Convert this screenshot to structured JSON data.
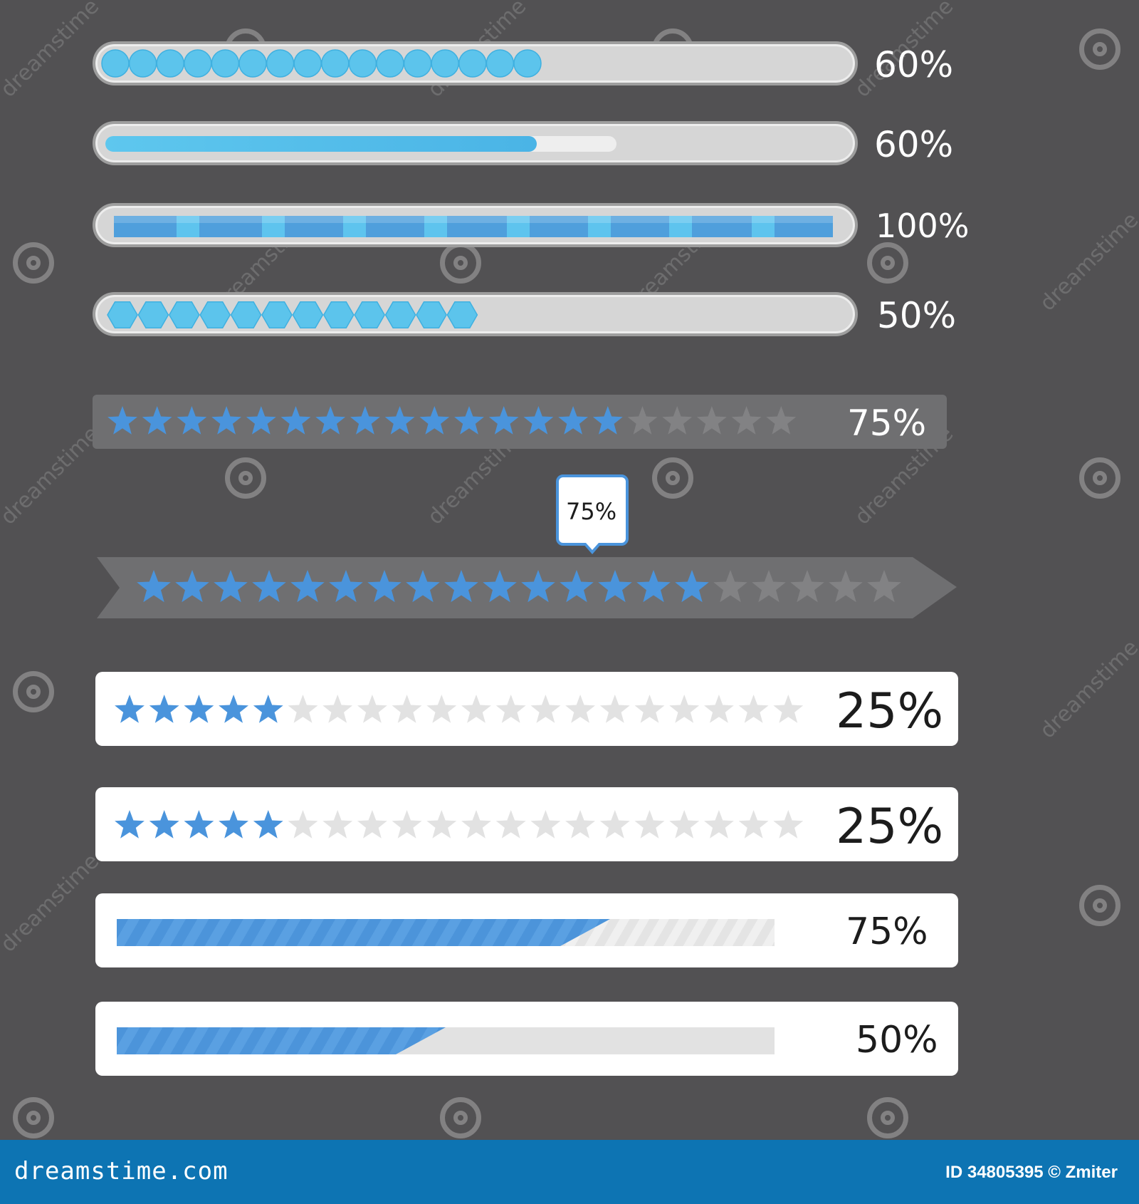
{
  "bars": [
    {
      "style": "circles-track",
      "progress": 60,
      "label": "60%"
    },
    {
      "style": "smooth-track",
      "progress": 60,
      "label": "60%"
    },
    {
      "style": "segmented-track",
      "progress": 100,
      "label": "100%"
    },
    {
      "style": "hexagon-track",
      "progress": 50,
      "label": "50%"
    },
    {
      "style": "star-panel",
      "progress": 75,
      "label": "75%"
    },
    {
      "style": "star-arrow-with-tooltip",
      "progress": 75,
      "label": "75%"
    },
    {
      "style": "star-card",
      "progress": 25,
      "label": "25%"
    },
    {
      "style": "star-card",
      "progress": 25,
      "label": "25%"
    },
    {
      "style": "striped-card",
      "progress": 75,
      "label": "75%"
    },
    {
      "style": "striped-card",
      "progress": 50,
      "label": "50%"
    }
  ],
  "watermark": {
    "text": "dreamstime"
  },
  "footer": {
    "site": "dreamstime.com",
    "id_text": "ID 34805395 © Zmiter"
  },
  "colors": {
    "background": "#525153",
    "accent_blue": "#4a94dc",
    "cyan": "#5cc4ec",
    "footer": "#0d74b3"
  }
}
